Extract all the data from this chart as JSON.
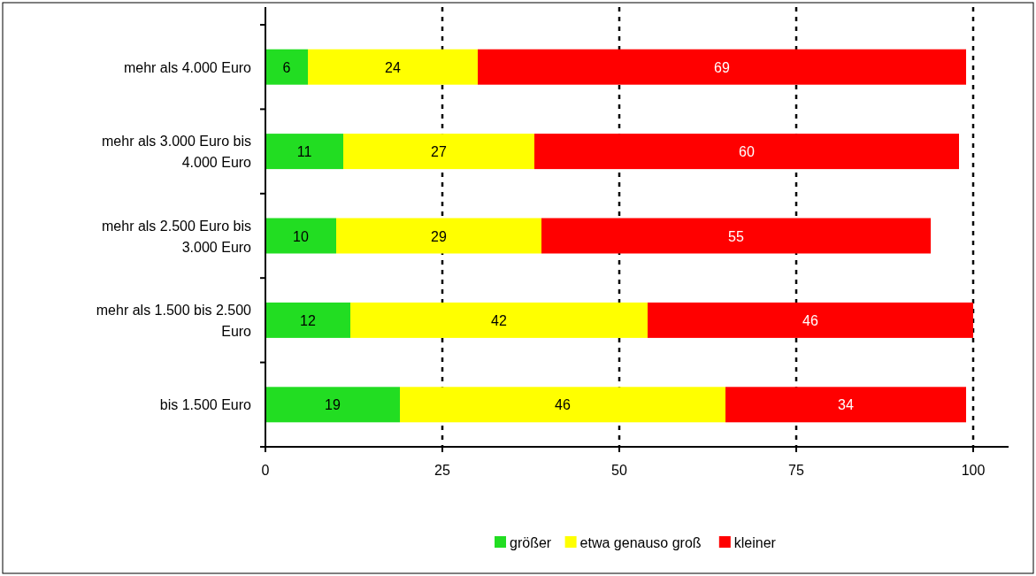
{
  "chart_data": {
    "type": "bar",
    "orientation": "horizontal",
    "stacked": true,
    "categories": [
      "mehr als 4.000 Euro",
      "mehr als 3.000 Euro bis 4.000 Euro",
      "mehr als 2.500 Euro bis 3.000 Euro",
      "mehr als 1.500 bis 2.500 Euro",
      "bis 1.500 Euro"
    ],
    "series": [
      {
        "name": "größer",
        "color": "#22dd22",
        "values": [
          6,
          11,
          10,
          12,
          19
        ]
      },
      {
        "name": "etwa genauso groß",
        "color": "#ffff00",
        "values": [
          24,
          27,
          29,
          42,
          46
        ]
      },
      {
        "name": "kleiner",
        "color": "#ff0000",
        "values": [
          69,
          60,
          55,
          46,
          34
        ]
      }
    ],
    "xlim": [
      0,
      105
    ],
    "xticks": [
      0,
      25,
      50,
      75,
      100
    ],
    "grid": "x",
    "legend": "bottom",
    "data_labels": true
  }
}
